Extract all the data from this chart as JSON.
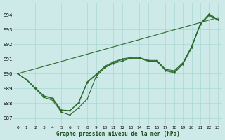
{
  "bg_color": "#cdeae8",
  "grid_color": "#a8d8d5",
  "line_color": "#2d6b2d",
  "xlabel": "Graphe pression niveau de la mer (hPa)",
  "ylim": [
    986.5,
    994.8
  ],
  "xlim": [
    -0.5,
    23.5
  ],
  "yticks": [
    987,
    988,
    989,
    990,
    991,
    992,
    993,
    994
  ],
  "curve1": [
    990.0,
    989.6,
    989.0,
    988.4,
    988.2,
    987.4,
    987.2,
    987.7,
    988.3,
    989.8,
    990.4,
    990.7,
    990.85,
    991.05,
    991.05,
    990.85,
    990.85,
    990.2,
    990.05,
    990.65,
    991.75,
    993.35,
    993.95,
    993.65
  ],
  "curve2": [
    990.0,
    989.6,
    989.0,
    988.5,
    988.3,
    987.5,
    987.5,
    988.0,
    989.4,
    989.9,
    990.45,
    990.75,
    990.95,
    991.05,
    991.05,
    990.85,
    990.85,
    990.25,
    990.1,
    990.7,
    991.8,
    993.35,
    994.0,
    993.65
  ],
  "curve3": [
    990.0,
    989.6,
    989.05,
    988.5,
    988.35,
    987.55,
    987.5,
    988.05,
    989.45,
    989.95,
    990.5,
    990.8,
    991.0,
    991.1,
    991.1,
    990.9,
    990.9,
    990.3,
    990.2,
    990.75,
    991.85,
    993.4,
    994.05,
    993.7
  ],
  "trend_x": [
    0,
    23
  ],
  "trend_y": [
    990.0,
    993.8
  ],
  "lw": 0.8,
  "ms": 1.5
}
